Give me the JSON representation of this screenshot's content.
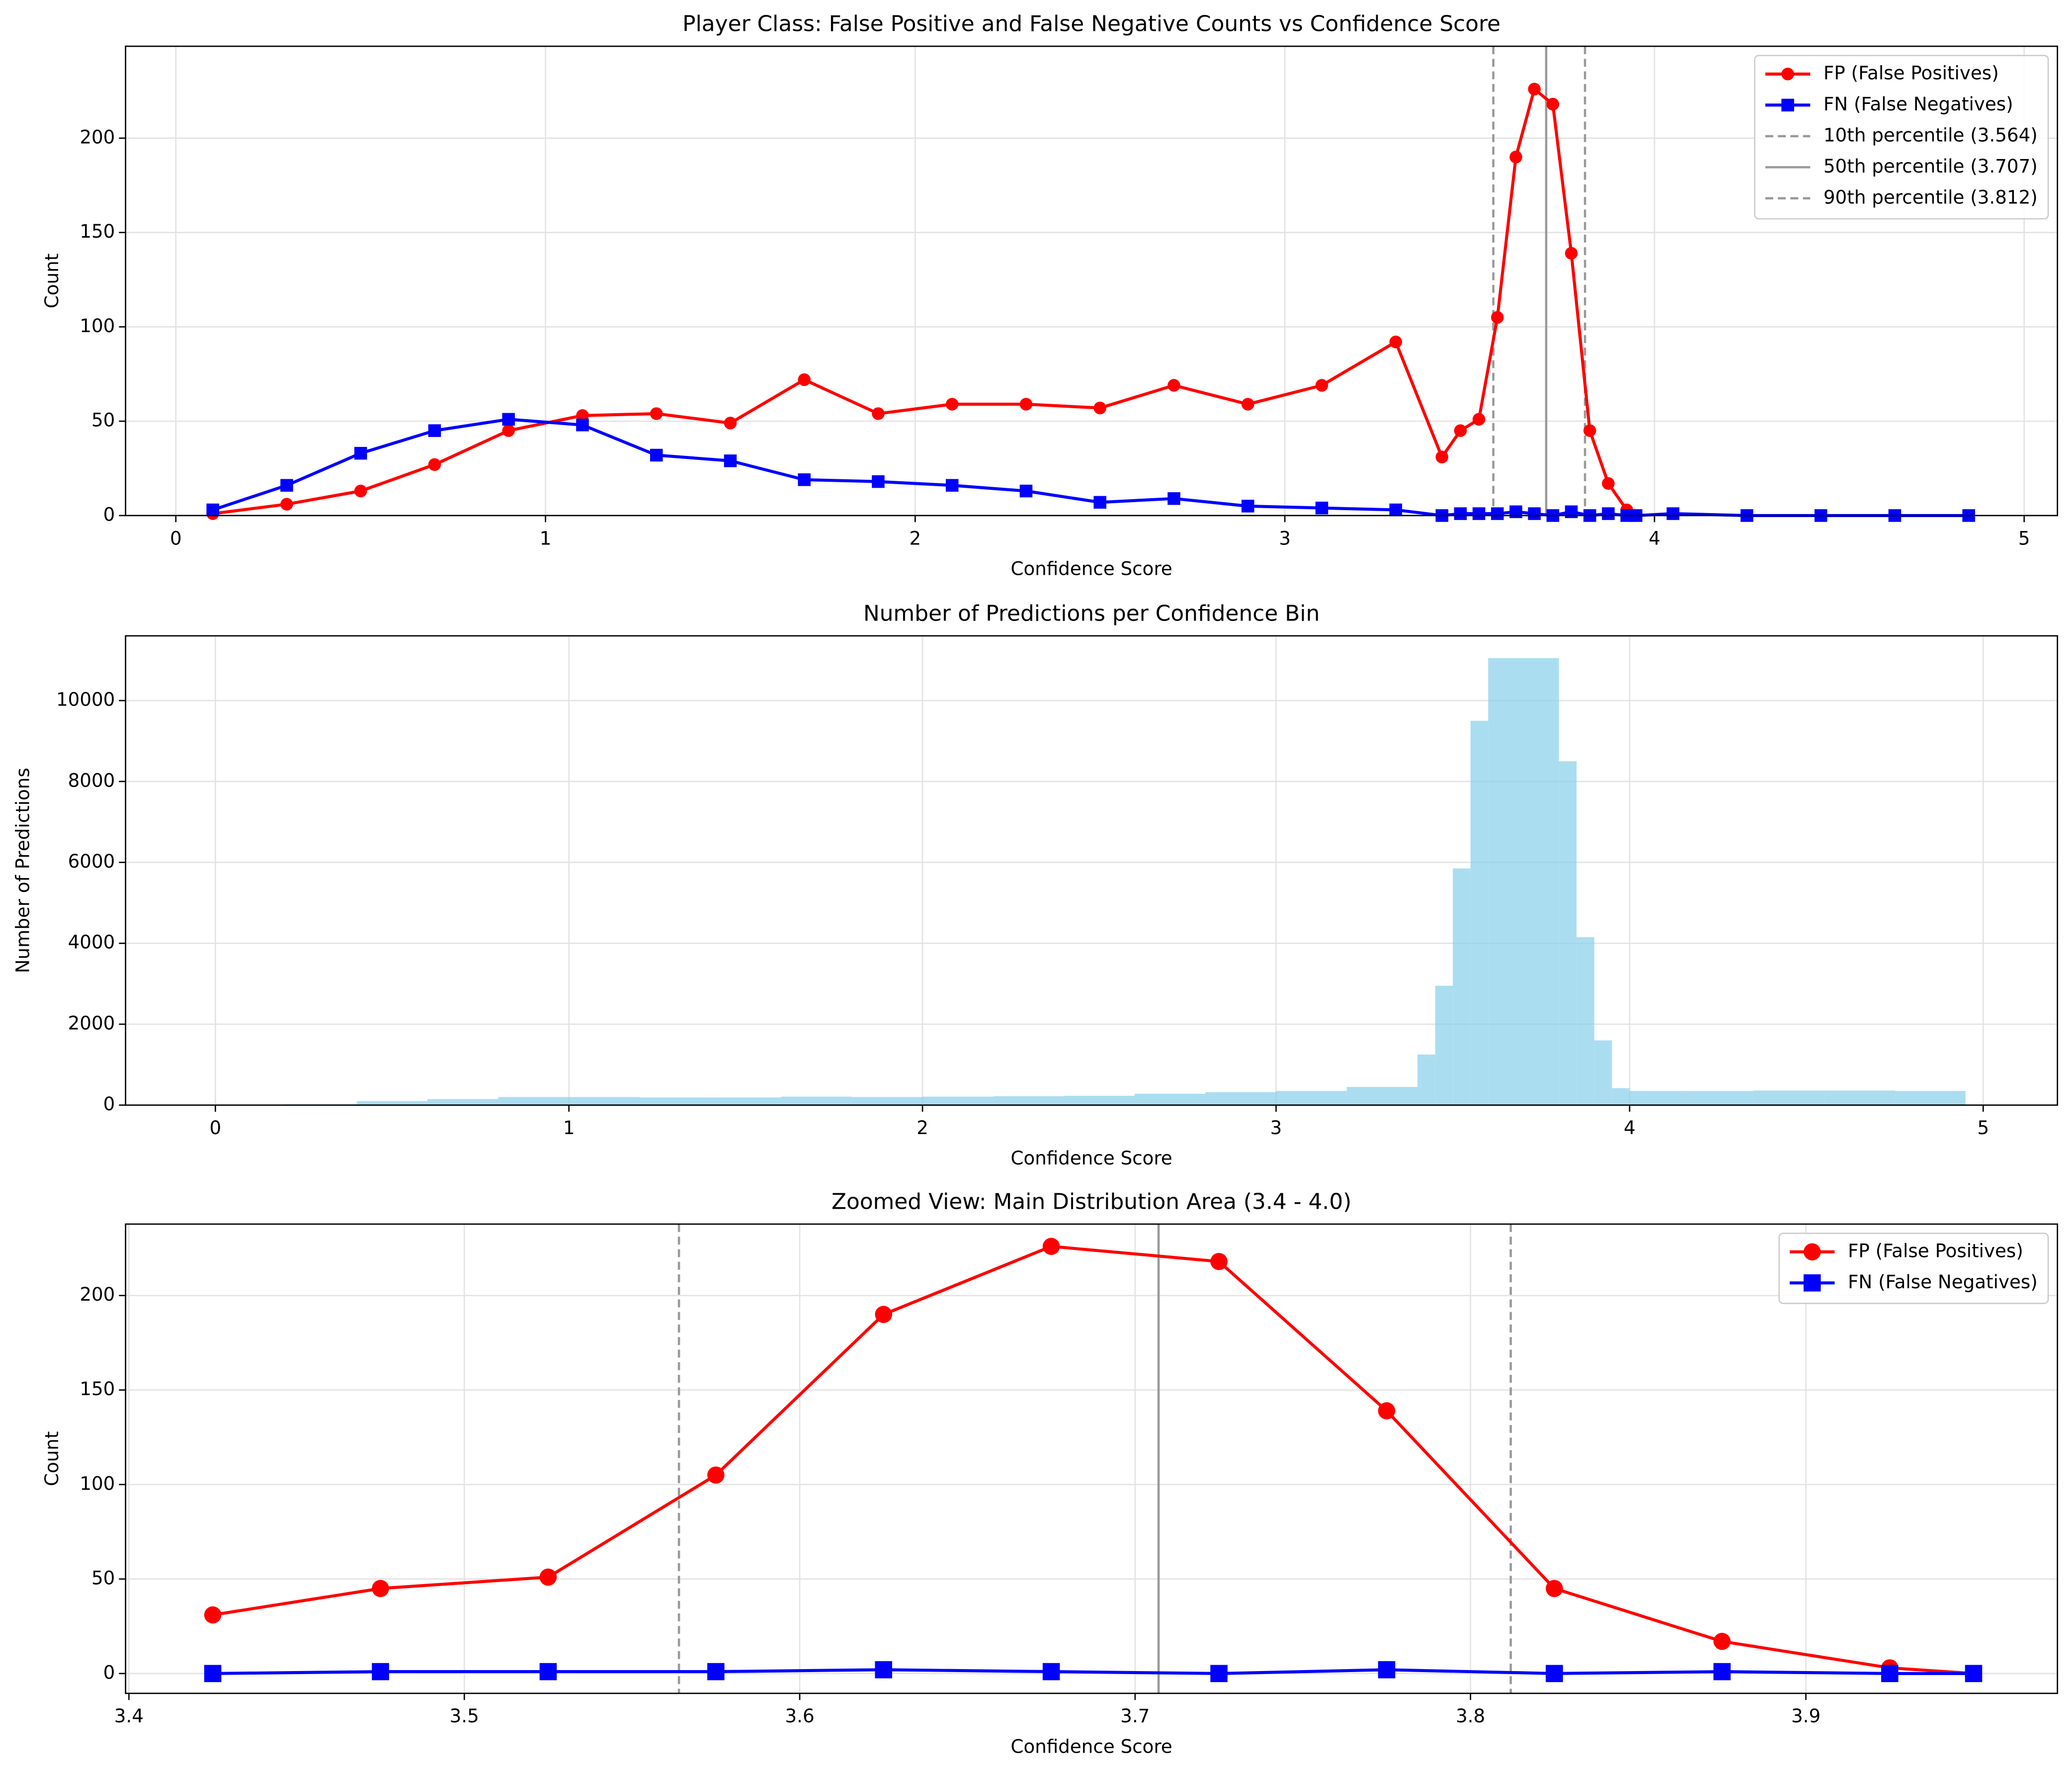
{
  "chart_data": [
    {
      "type": "line",
      "title": "Player Class: False Positive and False Negative Counts vs Confidence Score",
      "xlabel": "Confidence Score",
      "ylabel": "Count",
      "x": [
        0.1,
        0.3,
        0.5,
        0.7,
        0.9,
        1.1,
        1.3,
        1.5,
        1.7,
        1.9,
        2.1,
        2.3,
        2.5,
        2.7,
        2.9,
        3.1,
        3.3,
        3.425,
        3.475,
        3.525,
        3.575,
        3.625,
        3.675,
        3.725,
        3.775,
        3.825,
        3.875,
        3.925,
        3.95,
        4.05,
        4.25,
        4.45,
        4.65,
        4.85
      ],
      "series": [
        {
          "name": "FP (False Positives)",
          "color": "#ff0000",
          "marker": "circle",
          "values": [
            1,
            6,
            13,
            27,
            45,
            53,
            54,
            49,
            72,
            54,
            59,
            59,
            57,
            69,
            59,
            69,
            92,
            31,
            45,
            51,
            105,
            190,
            226,
            218,
            139,
            45,
            17,
            3,
            0,
            null,
            null,
            null,
            null,
            null
          ]
        },
        {
          "name": "FN (False Negatives)",
          "color": "#0000ff",
          "marker": "square",
          "values": [
            3,
            16,
            33,
            45,
            51,
            48,
            32,
            29,
            19,
            18,
            16,
            13,
            7,
            9,
            5,
            4,
            3,
            0,
            1,
            1,
            1,
            2,
            1,
            0,
            2,
            0,
            1,
            0,
            0,
            1,
            0,
            0,
            0,
            0
          ]
        }
      ],
      "vlines": [
        {
          "value": 3.564,
          "label": "10th percentile (3.564)",
          "style": "dashed"
        },
        {
          "value": 3.707,
          "label": "50th percentile (3.707)",
          "style": "solid"
        },
        {
          "value": 3.812,
          "label": "90th percentile (3.812)",
          "style": "dashed"
        }
      ],
      "xlim": [
        -0.136,
        5.09
      ],
      "ylim": [
        0,
        248.7
      ],
      "xticks": [
        0,
        1,
        2,
        3,
        4,
        5
      ],
      "yticks": [
        0,
        50,
        100,
        150,
        200
      ],
      "grid": true,
      "legend": "upper right"
    },
    {
      "type": "histogram",
      "title": "Number of Predictions per Confidence Bin",
      "xlabel": "Confidence Score",
      "ylabel": "Number of Predictions",
      "bins": [
        0,
        0.2,
        0.4,
        0.6,
        0.8,
        1.0,
        1.2,
        1.4,
        1.6,
        1.8,
        2.0,
        2.2,
        2.4,
        2.6,
        2.8,
        3.0,
        3.2,
        3.4,
        3.45,
        3.5,
        3.55,
        3.6,
        3.65,
        3.7,
        3.75,
        3.8,
        3.85,
        3.9,
        3.95,
        4.0,
        4.15,
        4.35,
        4.55,
        4.75,
        4.95
      ],
      "values": [
        0,
        20,
        100,
        150,
        200,
        200,
        190,
        190,
        210,
        200,
        210,
        220,
        230,
        280,
        320,
        350,
        450,
        1250,
        2950,
        5850,
        9500,
        11050,
        11050,
        11050,
        11050,
        8500,
        4150,
        1600,
        420,
        350,
        350,
        360,
        360,
        350
      ],
      "color": "#87ceeb",
      "xlim": [
        -0.254,
        5.21
      ],
      "ylim": [
        0,
        11600
      ],
      "xticks": [
        0,
        1,
        2,
        3,
        4,
        5
      ],
      "yticks": [
        0,
        2000,
        4000,
        6000,
        8000,
        10000
      ],
      "grid": true
    },
    {
      "type": "line",
      "title": "Zoomed View: Main Distribution Area (3.4 - 4.0)",
      "xlabel": "Confidence Score",
      "ylabel": "Count",
      "x": [
        3.425,
        3.475,
        3.525,
        3.575,
        3.625,
        3.675,
        3.725,
        3.775,
        3.825,
        3.875,
        3.925,
        3.95
      ],
      "series": [
        {
          "name": "FP (False Positives)",
          "color": "#ff0000",
          "marker": "circle",
          "values": [
            31,
            45,
            51,
            105,
            190,
            226,
            218,
            139,
            45,
            17,
            3,
            0
          ]
        },
        {
          "name": "FN (False Negatives)",
          "color": "#0000ff",
          "marker": "square",
          "values": [
            0,
            1,
            1,
            1,
            2,
            1,
            0,
            2,
            0,
            1,
            0,
            0
          ]
        }
      ],
      "vlines": [
        {
          "value": 3.564,
          "style": "dashed"
        },
        {
          "value": 3.707,
          "style": "solid"
        },
        {
          "value": 3.812,
          "style": "dashed"
        }
      ],
      "xlim": [
        3.399,
        3.975
      ],
      "ylim": [
        -10.5,
        237.8
      ],
      "xticks": [
        3.4,
        3.5,
        3.6,
        3.7,
        3.8,
        3.9
      ],
      "yticks": [
        0,
        50,
        100,
        150,
        200
      ],
      "grid": true,
      "legend": "upper right"
    }
  ]
}
